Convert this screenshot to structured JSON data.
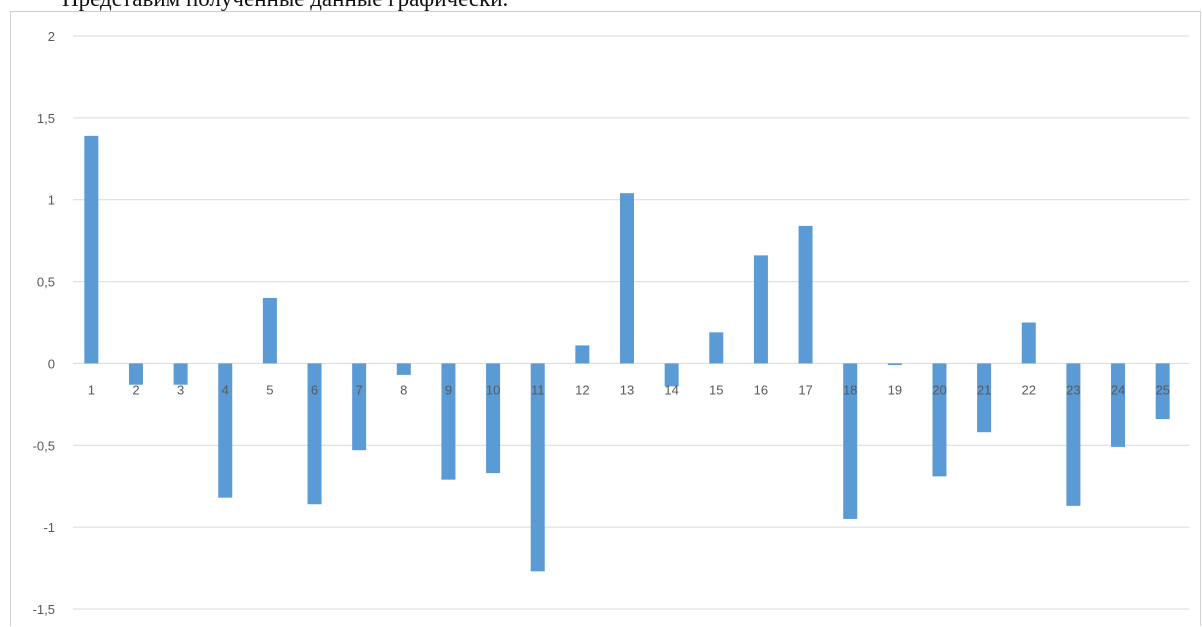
{
  "caption": "Представим полученные данные графически.",
  "chart_data": {
    "type": "bar",
    "title": "",
    "xlabel": "",
    "ylabel": "",
    "ylim": [
      -1.5,
      2
    ],
    "y_ticks": [
      2,
      1.5,
      1,
      0.5,
      0,
      -0.5,
      -1,
      -1.5
    ],
    "y_tick_labels": [
      "2",
      "1,5",
      "1",
      "0,5",
      "0",
      "-0,5",
      "-1",
      "-1,5"
    ],
    "categories": [
      "1",
      "2",
      "3",
      "4",
      "5",
      "6",
      "7",
      "8",
      "9",
      "10",
      "11",
      "12",
      "13",
      "14",
      "15",
      "16",
      "17",
      "18",
      "19",
      "20",
      "21",
      "22",
      "23",
      "24",
      "25"
    ],
    "values": [
      1.39,
      -0.13,
      -0.13,
      -0.82,
      0.4,
      -0.86,
      -0.53,
      -0.07,
      -0.71,
      -0.67,
      -1.27,
      0.11,
      1.04,
      -0.14,
      0.19,
      0.66,
      0.84,
      -0.95,
      -0.01,
      -0.69,
      -0.42,
      0.25,
      -0.87,
      -0.51,
      -0.34
    ],
    "grid": true,
    "legend": "none",
    "bar_color": "#5b9bd5",
    "grid_color": "#d9d9d9",
    "label_color": "#595959"
  }
}
